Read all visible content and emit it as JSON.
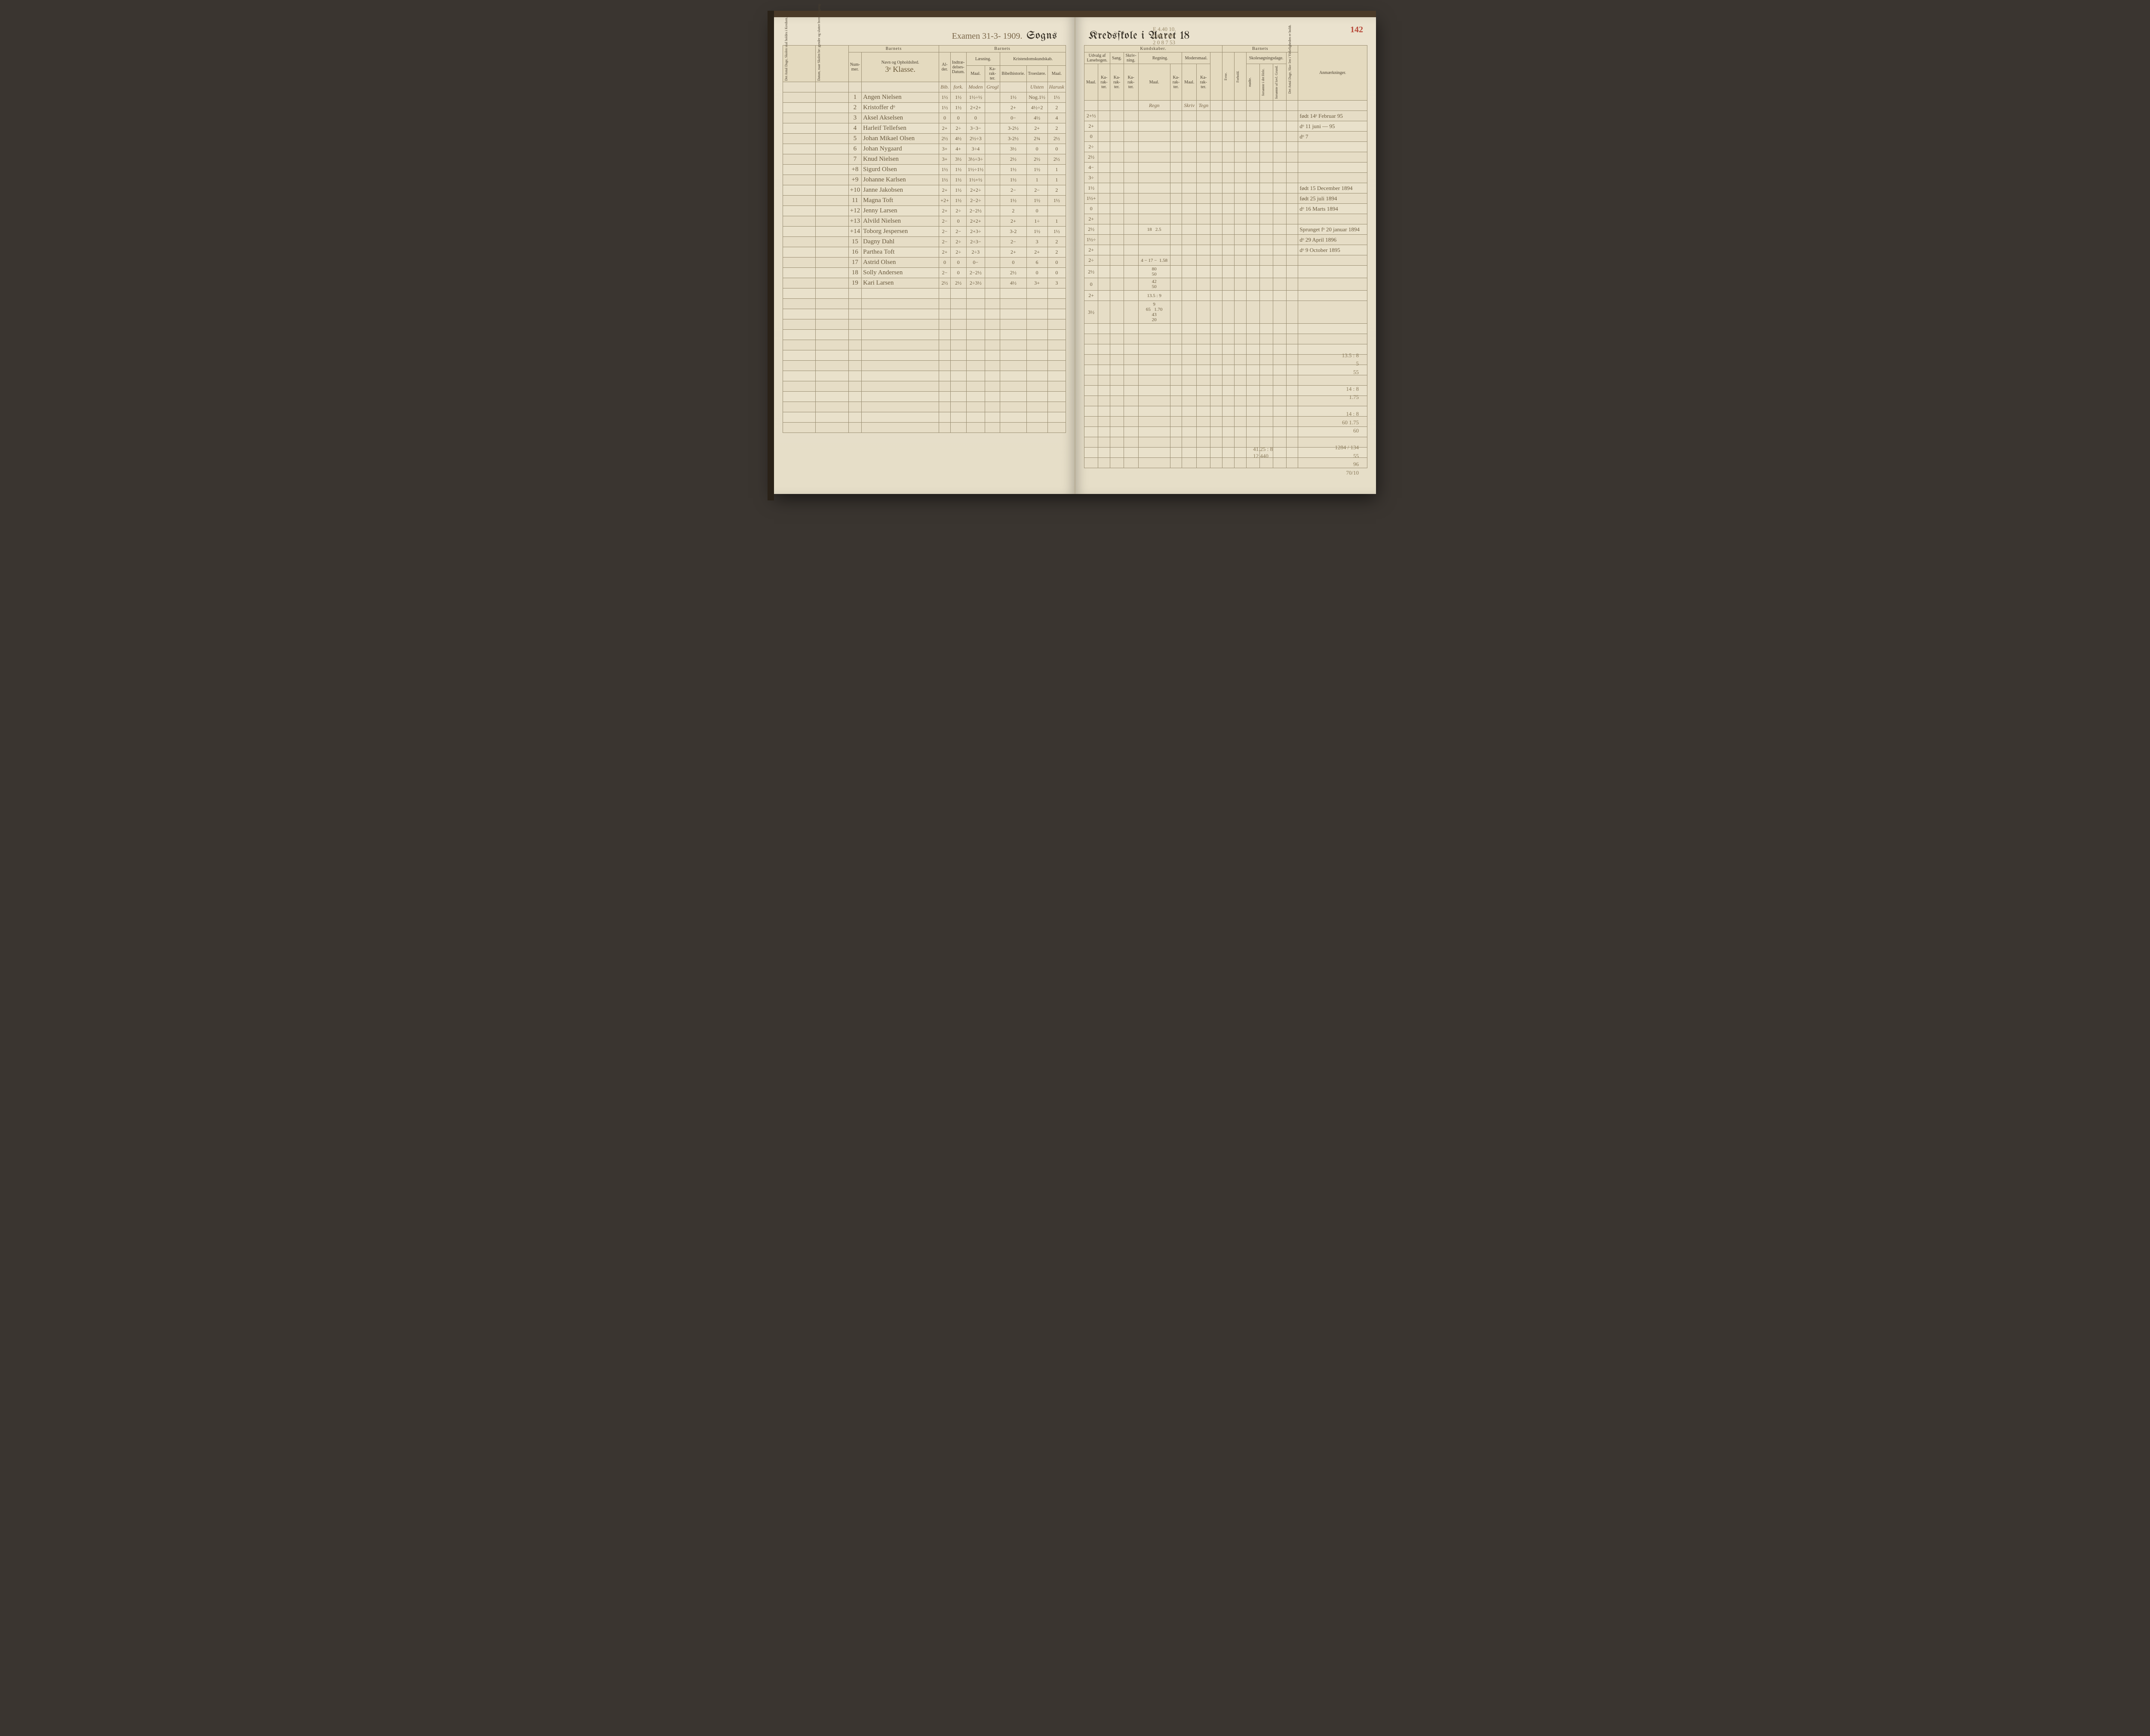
{
  "page_number": "142",
  "header": {
    "exam_note": "Examen 31-3- 1909.",
    "sogns": "Sogns",
    "kredsskole": "Kredsſkole i Aaret 18",
    "pencil_calc": "E 4.40   10.\n0 68   2 08\n2 0 8   7 53"
  },
  "class_label": "3ᵉ Klasse.",
  "groups": {
    "barnets_l": "Barnets",
    "barnets_m": "Barnets",
    "kundskaber": "Kundskaber.",
    "barnets_r": "Barnets"
  },
  "cols": {
    "antal_dage_l": "Det Antal Dage, Skolen skal holdes i Kredsen.",
    "datum": "Datum, naar Skolen be- gynder og slutter hver Omgang.",
    "nummer": "Num- mer.",
    "navn": "Navn og Opholdsſted.",
    "alder": "Al- der.",
    "indtr": "Indtræ- delses- Datum.",
    "laesning": "Læsning.",
    "kristen": "Kristendomskundskab.",
    "bibel": "Bibelhistorie.",
    "troes": "Troeslære.",
    "udvalg": "Udvalg af Læsebogen.",
    "sang": "Sang.",
    "skriv": "Skriv- ning.",
    "regning": "Regning.",
    "moders": "Modersmaal.",
    "maal": "Maal.",
    "kar": "Ka- rak- ter.",
    "evne": "Evne.",
    "forhold": "Forhold.",
    "skoles": "Skolesøgningsdage.",
    "modte": "mødte.",
    "fors_hele": "forsømte i det Hele.",
    "fors_lov": "forsømte af lovl. Grund.",
    "antal_dage_r": "Det Antal Dage, Sko- len i Virkeligheden er holdt.",
    "anm": "Anmærkninger."
  },
  "subhead": {
    "bib": "Bib.",
    "fork": "fork.",
    "moden": "Moden",
    "grogl": "Grogl",
    "ulsten": "Ulsten",
    "harusk": "Harusk",
    "regn": "Regn",
    "skriv": "Skriv",
    "tegn": "Tegn"
  },
  "rows": [
    {
      "n": "1",
      "name": "Angen Nielsen",
      "g": [
        "1½",
        "1½",
        "1½÷½",
        "",
        "1½",
        "Nog.1½",
        "1½",
        "2+½"
      ],
      "rem": "født 14ᵉ Februar 95"
    },
    {
      "n": "2",
      "name": "Kristoffer  dᵒ",
      "g": [
        "1½",
        "1½",
        "2+2+",
        "",
        "2+",
        "4½÷2",
        "2",
        "2+"
      ],
      "rem": "dᵒ 11 juni — 95"
    },
    {
      "n": "3",
      "name": "Aksel Akselsen",
      "g": [
        "0",
        "0",
        "0",
        "",
        "0−",
        "4½",
        "4",
        "0"
      ],
      "rem": "dᵒ 7"
    },
    {
      "n": "4",
      "name": "Harleif Tellefsen",
      "g": [
        "2+",
        "2÷",
        "3−3−",
        "",
        "3-2½",
        "2+",
        "2",
        "2÷"
      ],
      "rem": ""
    },
    {
      "n": "5",
      "name": "Johan Mikael Olsen",
      "g": [
        "2½",
        "4½",
        "2½÷3",
        "",
        "3-2½",
        "2¾",
        "2½",
        "2½"
      ],
      "rem": ""
    },
    {
      "n": "6",
      "name": "Johan Nygaard",
      "g": [
        "3+",
        "4+",
        "3÷4",
        "",
        "3½",
        "0",
        "0",
        "4−"
      ],
      "rem": ""
    },
    {
      "n": "7",
      "name": "Knud Nielsen",
      "g": [
        "3+",
        "3½",
        "3½÷3÷",
        "",
        "2½",
        "2½",
        "2½",
        "3÷"
      ],
      "rem": ""
    },
    {
      "n": "+8",
      "name": "Sigurd Olsen",
      "g": [
        "1½",
        "1½",
        "1½÷1½",
        "",
        "1½",
        "1½",
        "1",
        "1½"
      ],
      "rem": "født 15 December 1894"
    },
    {
      "n": "+9",
      "name": "Johanne Karlsen",
      "g": [
        "1½",
        "1½",
        "1½+½",
        "",
        "1½",
        "1",
        "1",
        "1½+"
      ],
      "rem": "født 25 juli 1894"
    },
    {
      "n": "+10",
      "name": "Janne Jakobsen",
      "g": [
        "2+",
        "1½",
        "2+2÷",
        "",
        "2−",
        "2−",
        "2",
        "0"
      ],
      "rem": "dᵒ 16 Marts 1894"
    },
    {
      "n": "11",
      "name": "Magna Toft",
      "g": [
        "+2+",
        "1½",
        "2−2÷",
        "",
        "1½",
        "1½",
        "1½",
        "2+"
      ],
      "rem": ""
    },
    {
      "n": "+12",
      "name": "Jenny Larsen",
      "g": [
        "2+",
        "2÷",
        "2−2½",
        "",
        "2",
        "0",
        "",
        "2½"
      ],
      "ex": "18   2.5",
      "rem": "Sprunget fᵒ 20 januar 1894"
    },
    {
      "n": "+13",
      "name": "Alvild Nielsen",
      "g": [
        "2−",
        "0",
        "2+2+",
        "",
        "2+",
        "1÷",
        "1",
        "1½÷"
      ],
      "rem": "dᵒ 29 April 1896"
    },
    {
      "n": "+14",
      "name": "Toborg Jespersen",
      "g": [
        "2−",
        "2−",
        "2+3÷",
        "",
        "3-2",
        "1½",
        "1½",
        "2+"
      ],
      "rem": "dᵒ 9 October 1895"
    },
    {
      "n": "15",
      "name": "Dagny Dahl",
      "g": [
        "2−",
        "2÷",
        "2÷3−",
        "",
        "2−",
        "3",
        "2",
        "2÷"
      ],
      "ex": "4 − 17 −  1.58",
      "rem": ""
    },
    {
      "n": "16",
      "name": "Parthea Toft",
      "g": [
        "2+",
        "2÷",
        "2÷3",
        "",
        "2+",
        "2+",
        "2",
        "2½"
      ],
      "ex": "80\n50",
      "rem": ""
    },
    {
      "n": "17",
      "name": "Astrid Olsen",
      "g": [
        "0",
        "0",
        "0−",
        "",
        "0",
        "6",
        "0",
        "0"
      ],
      "ex": "42\n50",
      "rem": ""
    },
    {
      "n": "18",
      "name": "Solly Andersen",
      "g": [
        "2−",
        "0",
        "2−2½",
        "",
        "2½",
        "0",
        "0",
        "2+"
      ],
      "ex": "13.5 : 9",
      "rem": ""
    },
    {
      "n": "19",
      "name": "Kari Larsen",
      "g": [
        "2½",
        "2½",
        "2÷3½",
        "",
        "4½",
        "3+",
        "3",
        "3½"
      ],
      "ex": "9\n65   1.70\n43\n20",
      "rem": ""
    }
  ],
  "scratch": {
    "left": "41.25 : 8\n12      440",
    "right": "13.5 : 8\n5\n55\n\n14 : 8\n1.75\n\n14 : 8\n60   1.75\n60\n\n1284 / 134\n55\n96\n70/10"
  },
  "colors": {
    "paper": "#e8e0cc",
    "rule": "#9a8e72",
    "ink_print": "#3a342a",
    "ink_hand": "#6a5a3e",
    "pencil": "#9a8a6a",
    "page_num": "#b84a3a"
  }
}
